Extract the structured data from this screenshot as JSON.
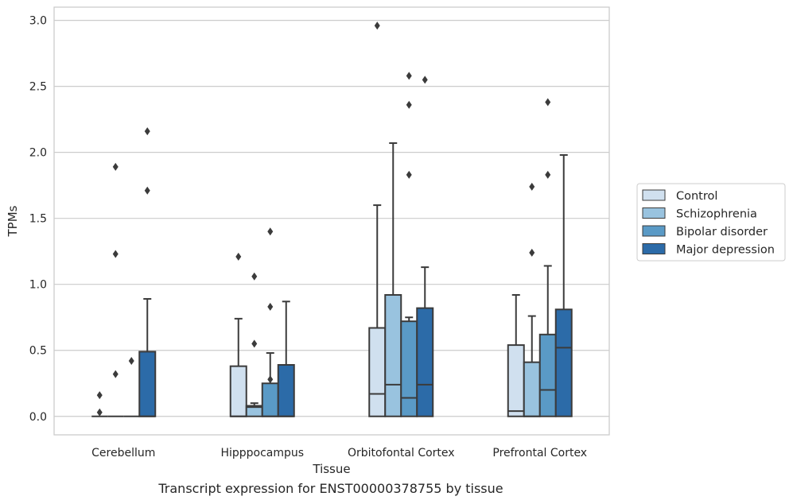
{
  "caption": "Transcript expression for ENST00000378755 by tissue",
  "chart_data": {
    "type": "box",
    "xlabel": "Tissue",
    "ylabel": "TPMs",
    "ylim": [
      -0.14,
      3.1
    ],
    "yticks": [
      0.0,
      0.5,
      1.0,
      1.5,
      2.0,
      2.5,
      3.0
    ],
    "ytick_labels": [
      "0.0",
      "0.5",
      "1.0",
      "1.5",
      "2.0",
      "2.5",
      "3.0"
    ],
    "grid": "horizontal",
    "legend_position": "right",
    "categories": [
      "Cerebellum",
      "Hipppocampus",
      "Orbitofontal Cortex",
      "Prefrontal Cortex"
    ],
    "series": [
      {
        "name": "Control",
        "color": "#d0e0ef",
        "boxes": [
          {
            "q1": 0,
            "median": 0,
            "q3": 0,
            "whisker_low": 0,
            "whisker_high": 0,
            "outliers": [
              0.03,
              0.16
            ]
          },
          {
            "q1": 0,
            "median": 0,
            "q3": 0.38,
            "whisker_low": 0,
            "whisker_high": 0.74,
            "outliers": [
              1.21
            ]
          },
          {
            "q1": 0,
            "median": 0.17,
            "q3": 0.67,
            "whisker_low": 0,
            "whisker_high": 1.6,
            "outliers": [
              2.96
            ]
          },
          {
            "q1": 0,
            "median": 0.04,
            "q3": 0.54,
            "whisker_low": 0,
            "whisker_high": 0.92,
            "outliers": []
          }
        ]
      },
      {
        "name": "Schizophrenia",
        "color": "#99c3df",
        "boxes": [
          {
            "q1": 0,
            "median": 0,
            "q3": 0,
            "whisker_low": 0,
            "whisker_high": 0,
            "outliers": [
              0.32,
              1.23,
              1.89
            ]
          },
          {
            "q1": 0,
            "median": 0.07,
            "q3": 0.08,
            "whisker_low": 0,
            "whisker_high": 0.1,
            "outliers": [
              0.55,
              1.06
            ]
          },
          {
            "q1": 0,
            "median": 0.24,
            "q3": 0.92,
            "whisker_low": 0,
            "whisker_high": 2.07,
            "outliers": []
          },
          {
            "q1": 0,
            "median": 0,
            "q3": 0.41,
            "whisker_low": 0,
            "whisker_high": 0.76,
            "outliers": [
              1.24,
              1.74
            ]
          }
        ]
      },
      {
        "name": "Bipolar disorder",
        "color": "#5a9ac6",
        "boxes": [
          {
            "q1": 0,
            "median": 0,
            "q3": 0,
            "whisker_low": 0,
            "whisker_high": 0,
            "outliers": [
              0.42
            ]
          },
          {
            "q1": 0,
            "median": 0,
            "q3": 0.25,
            "whisker_low": 0,
            "whisker_high": 0.48,
            "outliers": [
              0.28,
              0.83,
              1.4
            ]
          },
          {
            "q1": 0,
            "median": 0.14,
            "q3": 0.72,
            "whisker_low": 0,
            "whisker_high": 0.75,
            "outliers": [
              1.83,
              2.36,
              2.58
            ]
          },
          {
            "q1": 0,
            "median": 0.2,
            "q3": 0.62,
            "whisker_low": 0,
            "whisker_high": 1.14,
            "outliers": [
              1.83,
              2.38
            ]
          }
        ]
      },
      {
        "name": "Major depression",
        "color": "#2c6ba8",
        "boxes": [
          {
            "q1": 0,
            "median": 0,
            "q3": 0.49,
            "whisker_low": 0,
            "whisker_high": 0.89,
            "outliers": [
              1.71,
              2.16
            ]
          },
          {
            "q1": 0,
            "median": 0,
            "q3": 0.39,
            "whisker_low": 0,
            "whisker_high": 0.87,
            "outliers": []
          },
          {
            "q1": 0,
            "median": 0.24,
            "q3": 0.82,
            "whisker_low": 0,
            "whisker_high": 1.13,
            "outliers": [
              2.55
            ]
          },
          {
            "q1": 0,
            "median": 0.52,
            "q3": 0.81,
            "whisker_low": 0,
            "whisker_high": 1.98,
            "outliers": []
          }
        ]
      }
    ]
  }
}
